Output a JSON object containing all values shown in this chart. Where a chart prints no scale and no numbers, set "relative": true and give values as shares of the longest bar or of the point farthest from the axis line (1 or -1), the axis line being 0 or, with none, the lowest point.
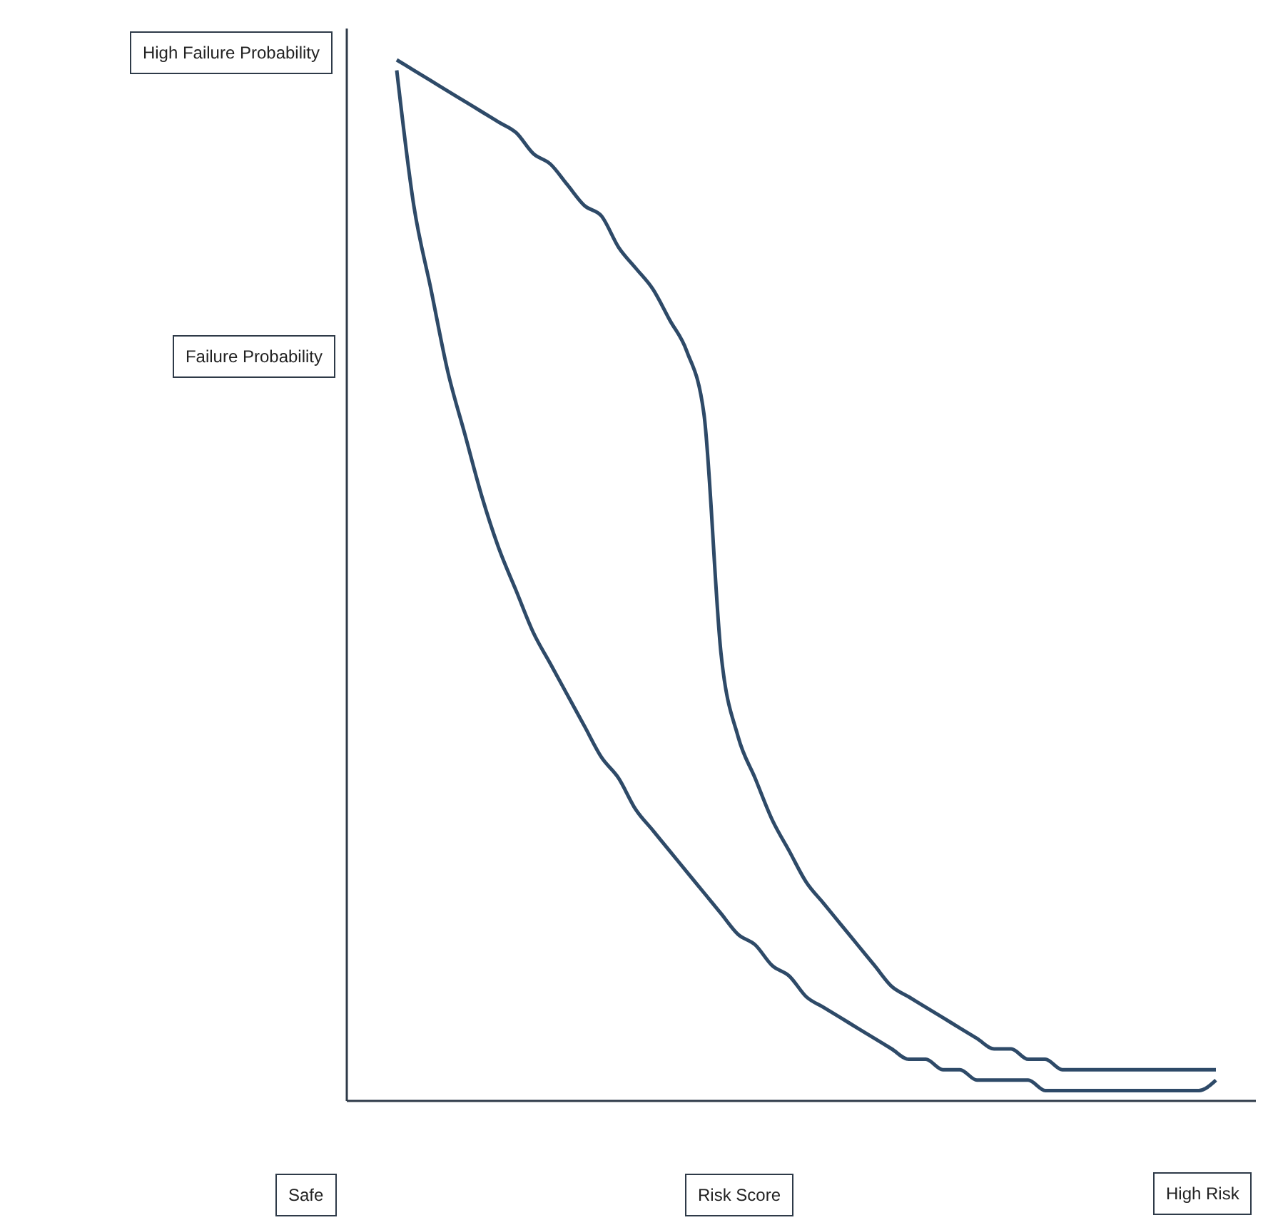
{
  "chart_data": {
    "type": "line",
    "relative": true,
    "xlabel": "Risk Score",
    "ylabel": "Failure Probability",
    "marker": "none",
    "annotations": [
      "High Failure Probability",
      "Safe",
      "High Risk"
    ],
    "categories": [
      null,
      null,
      null,
      null,
      null,
      null,
      null,
      null,
      null,
      null,
      null,
      null,
      null,
      null,
      null,
      null,
      null,
      null,
      null,
      null,
      null,
      null,
      null,
      null,
      null,
      null,
      null,
      null,
      null,
      null,
      null,
      null,
      null,
      null,
      null,
      null,
      null,
      null,
      null,
      null,
      null,
      null,
      null,
      null,
      null,
      null,
      null,
      null,
      null
    ],
    "series": [
      {
        "color": "#2e4a68",
        "values": [
          1.0,
          0.99,
          0.98,
          0.97,
          0.96,
          0.95,
          0.94,
          0.93,
          0.91,
          0.9,
          0.88,
          0.86,
          0.85,
          0.82,
          0.8,
          0.78,
          0.75,
          0.72,
          0.66,
          0.43,
          0.35,
          0.31,
          0.27,
          0.24,
          0.21,
          0.19,
          0.17,
          0.15,
          0.13,
          0.11,
          0.1,
          0.09,
          0.08,
          0.07,
          0.06,
          0.05,
          0.05,
          0.04,
          0.04,
          0.03,
          0.03,
          0.03,
          0.03,
          0.03,
          0.03,
          0.03,
          0.03,
          0.03,
          0.03
        ]
      },
      {
        "color": "#2e4a68",
        "values": [
          0.99,
          0.86,
          0.78,
          0.7,
          0.64,
          0.58,
          0.53,
          0.49,
          0.45,
          0.42,
          0.39,
          0.36,
          0.33,
          0.31,
          0.28,
          0.26,
          0.24,
          0.22,
          0.2,
          0.18,
          0.16,
          0.15,
          0.13,
          0.12,
          0.1,
          0.09,
          0.08,
          0.07,
          0.06,
          0.05,
          0.04,
          0.04,
          0.03,
          0.03,
          0.02,
          0.02,
          0.02,
          0.02,
          0.01,
          0.01,
          0.01,
          0.01,
          0.01,
          0.01,
          0.01,
          0.01,
          0.01,
          0.01,
          0.02
        ]
      }
    ]
  }
}
